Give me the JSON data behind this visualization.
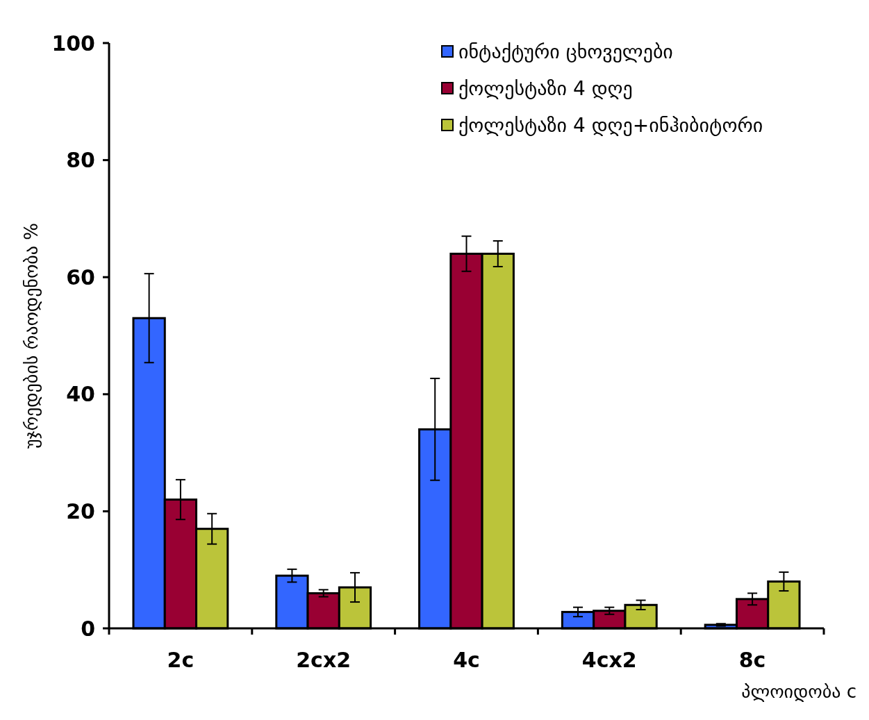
{
  "chart_data": {
    "type": "bar",
    "xlabel": "პლოიდობა c",
    "ylabel": "უჯრედების რაოდენობა %",
    "categories": [
      "2c",
      "2cx2",
      "4c",
      "4cx2",
      "8c"
    ],
    "series": [
      {
        "name": "ინტაქტური ცხოველები",
        "color": "#3366ff",
        "values": [
          53,
          9,
          34,
          2.8,
          0.6
        ],
        "errors": [
          7.6,
          1.1,
          8.7,
          0.8,
          0.2
        ]
      },
      {
        "name": "ქოლესტაზი 4 დღე",
        "color": "#990033",
        "values": [
          22,
          6,
          64,
          3,
          5
        ],
        "errors": [
          3.4,
          0.6,
          3,
          0.6,
          1
        ]
      },
      {
        "name": "ქოლესტაზი 4 დღე+ინჰიბიტორი",
        "color": "#bbc43a",
        "values": [
          17,
          7,
          64,
          4,
          8
        ],
        "errors": [
          2.6,
          2.5,
          2.2,
          0.8,
          1.6
        ]
      }
    ],
    "ylim": [
      0,
      100
    ],
    "yticks": [
      0,
      20,
      40,
      60,
      80,
      100
    ],
    "grid": false,
    "legend": "top right"
  }
}
